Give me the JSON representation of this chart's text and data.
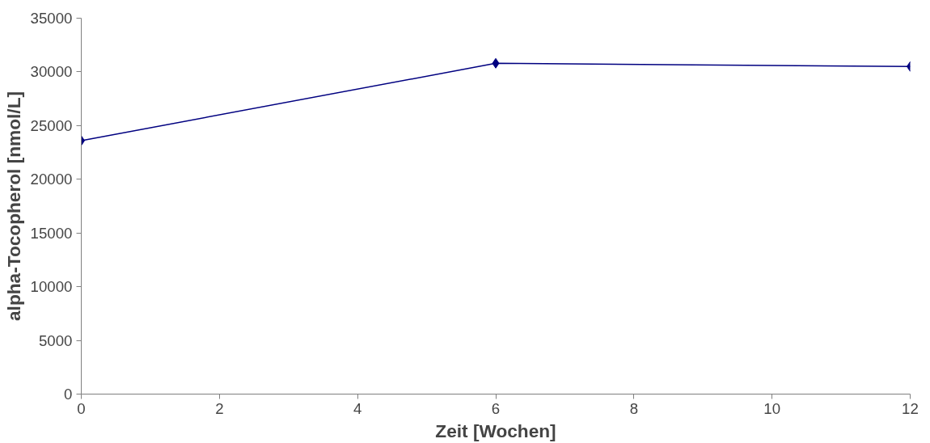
{
  "chart_data": {
    "type": "line",
    "xlabel": "Zeit [Wochen]",
    "ylabel": "alpha-Tocopherol [nmol/L]",
    "x": [
      0,
      6,
      12
    ],
    "series": [
      {
        "color": "#000080",
        "values": [
          23600,
          30800,
          30500
        ]
      }
    ],
    "xlim": [
      0,
      12
    ],
    "xticks": [
      0,
      2,
      4,
      6,
      8,
      10,
      12
    ],
    "ylim": [
      0,
      35000
    ],
    "yticks": [
      0,
      5000,
      10000,
      15000,
      20000,
      25000,
      30000,
      35000
    ],
    "grid": false,
    "marker": "diamond",
    "line_style": "solid"
  }
}
